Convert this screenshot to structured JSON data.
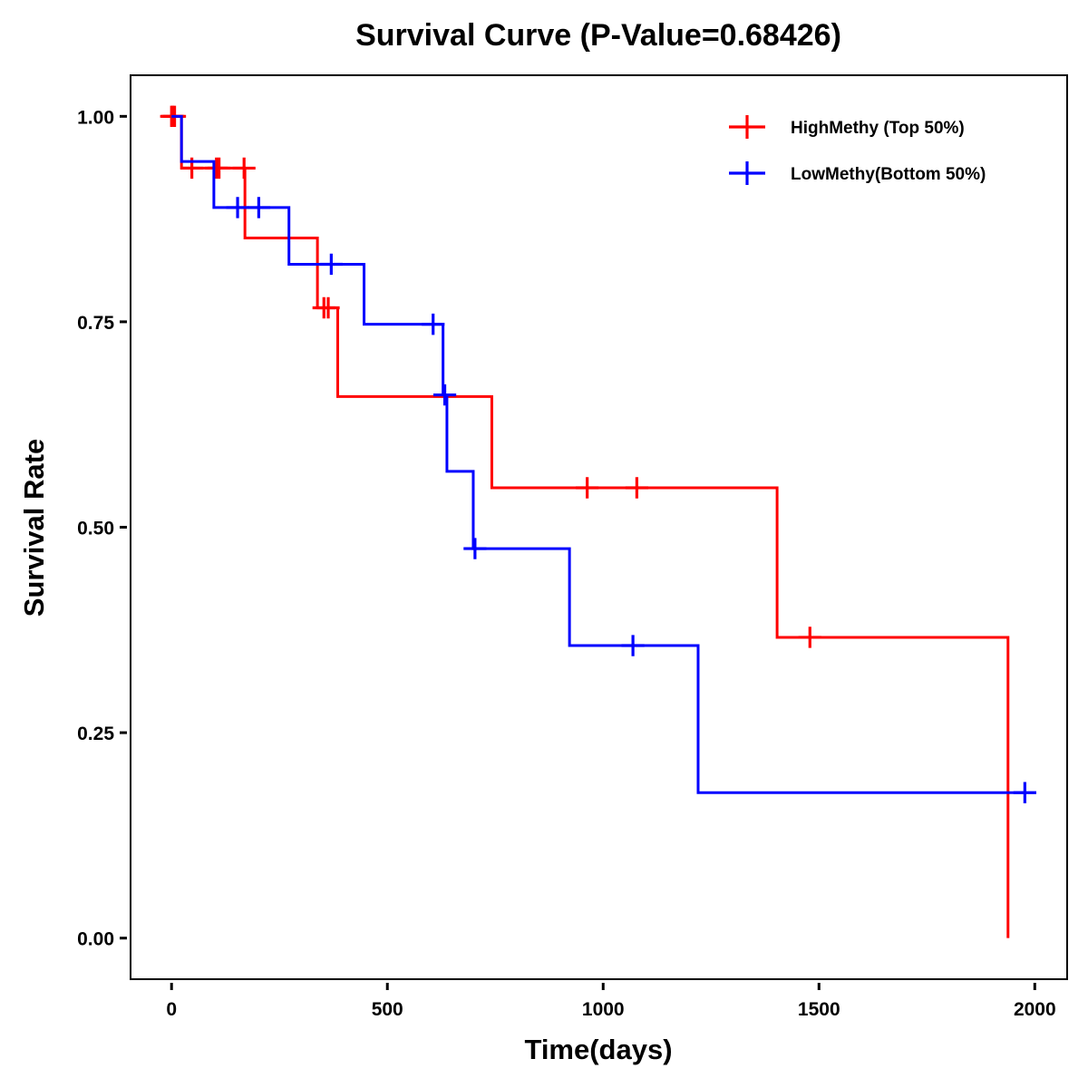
{
  "chart_data": {
    "type": "line",
    "subtype": "kaplan-meier-step",
    "title": "Survival Curve (P-Value=0.68426)",
    "xlabel": "Time(days)",
    "ylabel": "Survival Rate",
    "xlim": [
      -95,
      2075
    ],
    "ylim": [
      -0.05,
      1.05
    ],
    "xticks": [
      0,
      500,
      1000,
      1500,
      2000
    ],
    "xtick_labels": [
      "0",
      "500",
      "1000",
      "1500",
      "2000"
    ],
    "yticks": [
      0,
      0.25,
      0.5,
      0.75,
      1.0
    ],
    "ytick_labels": [
      "0.00",
      "0.25",
      "0.50",
      "0.75",
      "1.00"
    ],
    "grid": false,
    "legend_position": "top-right",
    "series": [
      {
        "name": "HighMethy (Top 50%)",
        "color": "#ff0000",
        "steps": [
          {
            "time": 0,
            "survival": 1.0
          },
          {
            "time": 23,
            "survival": 0.937
          },
          {
            "time": 170,
            "survival": 0.852
          },
          {
            "time": 338,
            "survival": 0.767
          },
          {
            "time": 385,
            "survival": 0.659
          },
          {
            "time": 742,
            "survival": 0.548
          },
          {
            "time": 1403,
            "survival": 0.366
          },
          {
            "time": 1938,
            "survival": 0.0
          }
        ],
        "end_time": 1938,
        "censored": [
          {
            "time": 0,
            "survival": 1.0
          },
          {
            "time": 3,
            "survival": 1.0
          },
          {
            "time": 7,
            "survival": 1.0
          },
          {
            "time": 47,
            "survival": 0.937
          },
          {
            "time": 104,
            "survival": 0.937
          },
          {
            "time": 110,
            "survival": 0.937
          },
          {
            "time": 168,
            "survival": 0.937
          },
          {
            "time": 353,
            "survival": 0.767
          },
          {
            "time": 363,
            "survival": 0.767
          },
          {
            "time": 963,
            "survival": 0.548
          },
          {
            "time": 1078,
            "survival": 0.548
          },
          {
            "time": 1479,
            "survival": 0.366
          }
        ]
      },
      {
        "name": "LowMethy(Bottom 50%)",
        "color": "#0000ff",
        "steps": [
          {
            "time": 0,
            "survival": 1.0
          },
          {
            "time": 23,
            "survival": 0.945
          },
          {
            "time": 98,
            "survival": 0.889
          },
          {
            "time": 272,
            "survival": 0.82
          },
          {
            "time": 446,
            "survival": 0.747
          },
          {
            "time": 629,
            "survival": 0.661
          },
          {
            "time": 638,
            "survival": 0.568
          },
          {
            "time": 699,
            "survival": 0.474
          },
          {
            "time": 922,
            "survival": 0.356
          },
          {
            "time": 1220,
            "survival": 0.177
          }
        ],
        "end_time": 1977,
        "censored": [
          {
            "time": 153,
            "survival": 0.889
          },
          {
            "time": 202,
            "survival": 0.889
          },
          {
            "time": 370,
            "survival": 0.82
          },
          {
            "time": 606,
            "survival": 0.747
          },
          {
            "time": 633,
            "survival": 0.661
          },
          {
            "time": 703,
            "survival": 0.474
          },
          {
            "time": 1069,
            "survival": 0.356
          },
          {
            "time": 1977,
            "survival": 0.177
          }
        ]
      }
    ]
  }
}
